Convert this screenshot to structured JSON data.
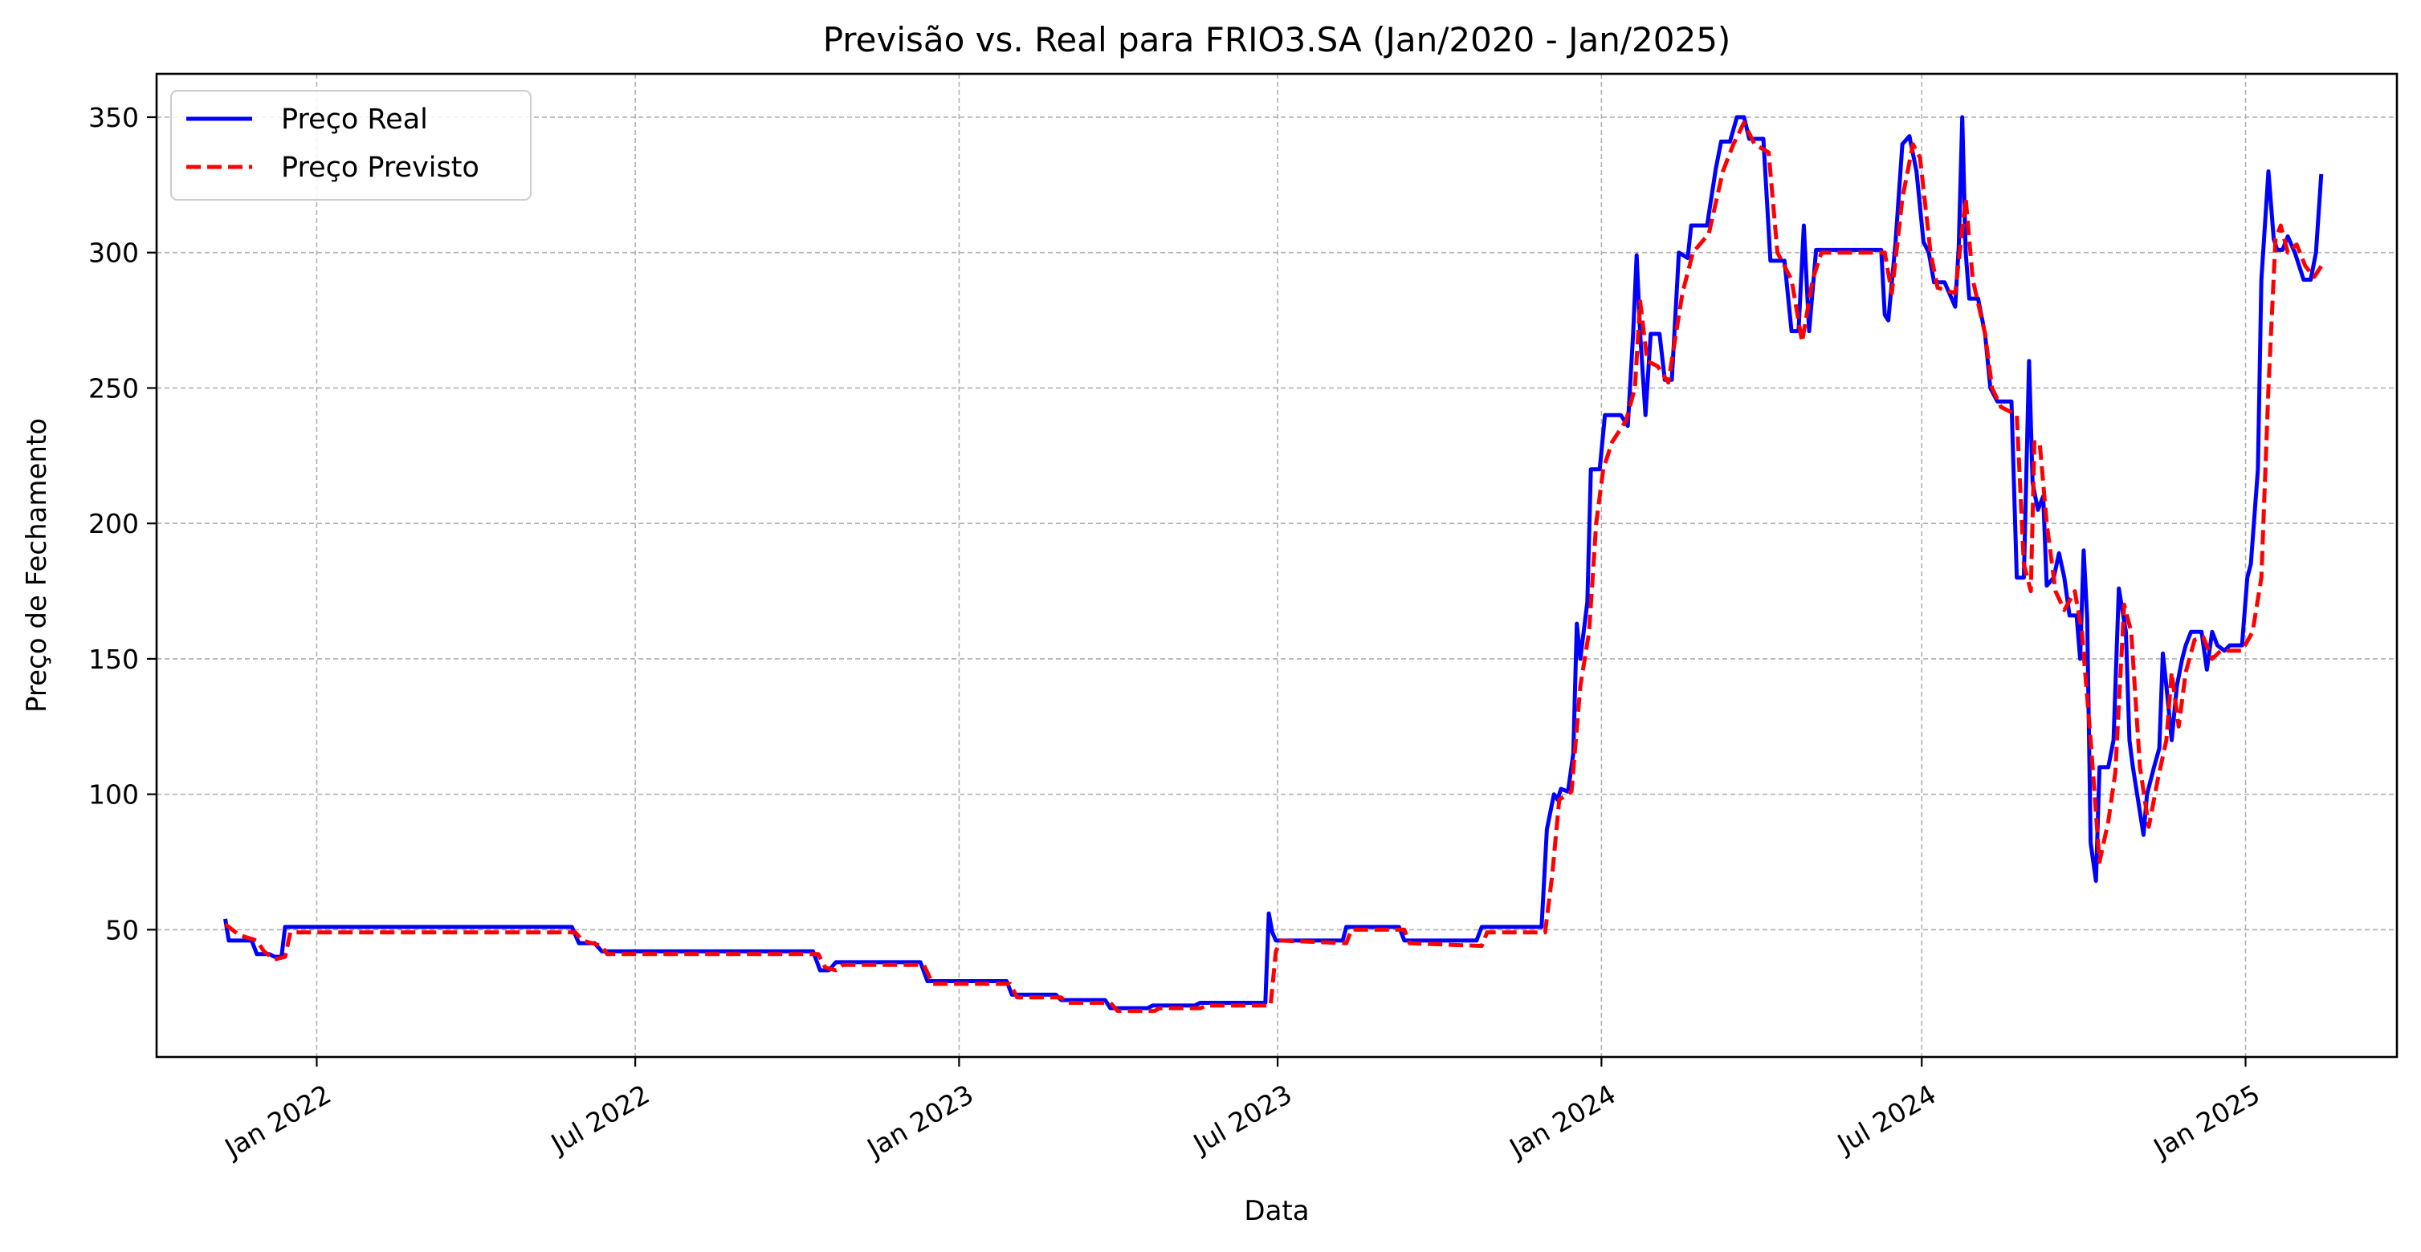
{
  "chart_data": {
    "type": "line",
    "title": "Previsão vs. Real para FRIO3.SA (Jan/2020 - Jan/2025)",
    "xlabel": "Data",
    "ylabel": "Preço de Fechamento",
    "xlim": [
      "2021-10-02",
      "2025-03-28"
    ],
    "ylim": [
      3,
      366
    ],
    "grid": true,
    "legend_position": "top-left",
    "x_ticks": [
      {
        "date": "2022-01-01",
        "label": "Jan 2022"
      },
      {
        "date": "2022-07-01",
        "label": "Jul 2022"
      },
      {
        "date": "2023-01-01",
        "label": "Jan 2023"
      },
      {
        "date": "2023-07-01",
        "label": "Jul 2023"
      },
      {
        "date": "2024-01-01",
        "label": "Jan 2024"
      },
      {
        "date": "2024-07-01",
        "label": "Jul 2024"
      },
      {
        "date": "2025-01-01",
        "label": "Jan 2025"
      }
    ],
    "y_ticks": [
      50,
      100,
      150,
      200,
      250,
      300,
      350
    ],
    "series": [
      {
        "name": "Preço Real",
        "color": "#0000ff",
        "style": "solid",
        "points": [
          [
            "2021-11-10",
            54
          ],
          [
            "2021-11-12",
            46
          ],
          [
            "2021-11-25",
            46
          ],
          [
            "2021-11-28",
            41
          ],
          [
            "2021-12-05",
            41
          ],
          [
            "2021-12-08",
            40
          ],
          [
            "2021-12-12",
            40
          ],
          [
            "2021-12-14",
            51
          ],
          [
            "2022-05-26",
            51
          ],
          [
            "2022-05-30",
            45
          ],
          [
            "2022-06-08",
            45
          ],
          [
            "2022-06-12",
            42
          ],
          [
            "2022-10-10",
            42
          ],
          [
            "2022-10-14",
            35
          ],
          [
            "2022-10-19",
            35
          ],
          [
            "2022-10-23",
            38
          ],
          [
            "2022-12-10",
            38
          ],
          [
            "2022-12-14",
            31
          ],
          [
            "2023-01-28",
            31
          ],
          [
            "2023-01-31",
            26
          ],
          [
            "2023-02-25",
            26
          ],
          [
            "2023-02-28",
            24
          ],
          [
            "2023-03-25",
            24
          ],
          [
            "2023-03-28",
            21
          ],
          [
            "2023-04-18",
            21
          ],
          [
            "2023-04-21",
            22
          ],
          [
            "2023-05-15",
            22
          ],
          [
            "2023-05-18",
            23
          ],
          [
            "2023-06-24",
            23
          ],
          [
            "2023-06-26",
            56
          ],
          [
            "2023-06-28",
            49
          ],
          [
            "2023-06-30",
            46
          ],
          [
            "2023-08-07",
            46
          ],
          [
            "2023-08-09",
            51
          ],
          [
            "2023-09-08",
            51
          ],
          [
            "2023-09-11",
            46
          ],
          [
            "2023-10-22",
            46
          ],
          [
            "2023-10-25",
            51
          ],
          [
            "2023-11-28",
            51
          ],
          [
            "2023-12-01",
            87
          ],
          [
            "2023-12-05",
            100
          ],
          [
            "2023-12-07",
            98
          ],
          [
            "2023-12-09",
            102
          ],
          [
            "2023-12-13",
            101
          ],
          [
            "2023-12-16",
            115
          ],
          [
            "2023-12-18",
            163
          ],
          [
            "2023-12-20",
            150
          ],
          [
            "2023-12-24",
            171
          ],
          [
            "2023-12-26",
            220
          ],
          [
            "2023-12-31",
            220
          ],
          [
            "2024-01-03",
            240
          ],
          [
            "2024-01-12",
            240
          ],
          [
            "2024-01-16",
            236
          ],
          [
            "2024-01-19",
            270
          ],
          [
            "2024-01-21",
            299
          ],
          [
            "2024-01-23",
            270
          ],
          [
            "2024-01-26",
            240
          ],
          [
            "2024-01-29",
            270
          ],
          [
            "2024-02-03",
            270
          ],
          [
            "2024-02-06",
            253
          ],
          [
            "2024-02-10",
            253
          ],
          [
            "2024-02-14",
            300
          ],
          [
            "2024-02-19",
            298
          ],
          [
            "2024-02-21",
            310
          ],
          [
            "2024-03-01",
            310
          ],
          [
            "2024-03-06",
            331
          ],
          [
            "2024-03-09",
            341
          ],
          [
            "2024-03-14",
            341
          ],
          [
            "2024-03-18",
            350
          ],
          [
            "2024-03-22",
            350
          ],
          [
            "2024-03-25",
            342
          ],
          [
            "2024-04-02",
            342
          ],
          [
            "2024-04-06",
            297
          ],
          [
            "2024-04-14",
            297
          ],
          [
            "2024-04-18",
            271
          ],
          [
            "2024-04-22",
            271
          ],
          [
            "2024-04-25",
            310
          ],
          [
            "2024-04-28",
            271
          ],
          [
            "2024-05-02",
            301
          ],
          [
            "2024-06-08",
            301
          ],
          [
            "2024-06-10",
            277
          ],
          [
            "2024-06-12",
            275
          ],
          [
            "2024-06-16",
            303
          ],
          [
            "2024-06-20",
            340
          ],
          [
            "2024-06-24",
            343
          ],
          [
            "2024-06-28",
            330
          ],
          [
            "2024-07-02",
            304
          ],
          [
            "2024-07-05",
            300
          ],
          [
            "2024-07-08",
            289
          ],
          [
            "2024-07-14",
            289
          ],
          [
            "2024-07-20",
            280
          ],
          [
            "2024-07-22",
            302
          ],
          [
            "2024-07-24",
            350
          ],
          [
            "2024-07-26",
            300
          ],
          [
            "2024-07-28",
            283
          ],
          [
            "2024-08-02",
            283
          ],
          [
            "2024-08-06",
            270
          ],
          [
            "2024-08-09",
            250
          ],
          [
            "2024-08-13",
            245
          ],
          [
            "2024-08-21",
            245
          ],
          [
            "2024-08-24",
            180
          ],
          [
            "2024-08-28",
            180
          ],
          [
            "2024-08-31",
            260
          ],
          [
            "2024-09-02",
            215
          ],
          [
            "2024-09-05",
            205
          ],
          [
            "2024-09-08",
            210
          ],
          [
            "2024-09-10",
            177
          ],
          [
            "2024-09-14",
            180
          ],
          [
            "2024-09-17",
            189
          ],
          [
            "2024-09-20",
            180
          ],
          [
            "2024-09-23",
            166
          ],
          [
            "2024-09-27",
            166
          ],
          [
            "2024-09-29",
            150
          ],
          [
            "2024-10-01",
            190
          ],
          [
            "2024-10-03",
            165
          ],
          [
            "2024-10-05",
            82
          ],
          [
            "2024-10-08",
            68
          ],
          [
            "2024-10-10",
            110
          ],
          [
            "2024-10-15",
            110
          ],
          [
            "2024-10-18",
            120
          ],
          [
            "2024-10-21",
            176
          ],
          [
            "2024-10-25",
            160
          ],
          [
            "2024-10-27",
            120
          ],
          [
            "2024-10-29",
            110
          ],
          [
            "2024-11-04",
            85
          ],
          [
            "2024-11-06",
            100
          ],
          [
            "2024-11-10",
            110
          ],
          [
            "2024-11-13",
            117
          ],
          [
            "2024-11-15",
            152
          ],
          [
            "2024-11-17",
            140
          ],
          [
            "2024-11-20",
            120
          ],
          [
            "2024-11-23",
            140
          ],
          [
            "2024-11-26",
            150
          ],
          [
            "2024-11-28",
            155
          ],
          [
            "2024-12-01",
            160
          ],
          [
            "2024-12-07",
            160
          ],
          [
            "2024-12-10",
            146
          ],
          [
            "2024-12-13",
            160
          ],
          [
            "2024-12-16",
            155
          ],
          [
            "2024-12-20",
            153
          ],
          [
            "2024-12-23",
            155
          ],
          [
            "2024-12-30",
            155
          ],
          [
            "2025-01-02",
            180
          ],
          [
            "2025-01-04",
            185
          ],
          [
            "2025-01-08",
            220
          ],
          [
            "2025-01-10",
            290
          ],
          [
            "2025-01-14",
            330
          ],
          [
            "2025-01-17",
            305
          ],
          [
            "2025-01-19",
            301
          ],
          [
            "2025-01-22",
            301
          ],
          [
            "2025-01-25",
            306
          ],
          [
            "2025-01-29",
            300
          ],
          [
            "2025-02-03",
            290
          ],
          [
            "2025-02-07",
            290
          ],
          [
            "2025-02-10",
            300
          ],
          [
            "2025-02-13",
            329
          ]
        ]
      },
      {
        "name": "Preço Previsto",
        "color": "#ff0000",
        "style": "dashed",
        "points": [
          [
            "2021-11-10",
            52
          ],
          [
            "2021-11-18",
            48
          ],
          [
            "2021-11-28",
            46
          ],
          [
            "2021-12-02",
            42
          ],
          [
            "2021-12-08",
            39
          ],
          [
            "2021-12-14",
            40
          ],
          [
            "2021-12-17",
            49
          ],
          [
            "2022-05-28",
            49
          ],
          [
            "2022-06-01",
            46
          ],
          [
            "2022-06-12",
            44
          ],
          [
            "2022-06-15",
            41
          ],
          [
            "2022-10-13",
            41
          ],
          [
            "2022-10-17",
            36
          ],
          [
            "2022-10-23",
            35
          ],
          [
            "2022-10-27",
            37
          ],
          [
            "2022-12-12",
            37
          ],
          [
            "2022-12-17",
            30
          ],
          [
            "2023-01-30",
            30
          ],
          [
            "2023-02-03",
            25
          ],
          [
            "2023-02-28",
            25
          ],
          [
            "2023-03-03",
            23
          ],
          [
            "2023-03-28",
            23
          ],
          [
            "2023-04-01",
            20
          ],
          [
            "2023-04-22",
            20
          ],
          [
            "2023-04-25",
            21
          ],
          [
            "2023-05-18",
            21
          ],
          [
            "2023-05-22",
            22
          ],
          [
            "2023-06-27",
            22
          ],
          [
            "2023-06-30",
            42
          ],
          [
            "2023-07-03",
            46
          ],
          [
            "2023-08-09",
            45
          ],
          [
            "2023-08-12",
            50
          ],
          [
            "2023-09-11",
            50
          ],
          [
            "2023-09-14",
            45
          ],
          [
            "2023-10-25",
            44
          ],
          [
            "2023-10-28",
            49
          ],
          [
            "2023-11-30",
            49
          ],
          [
            "2023-12-04",
            70
          ],
          [
            "2023-12-08",
            98
          ],
          [
            "2023-12-15",
            101
          ],
          [
            "2023-12-20",
            140
          ],
          [
            "2023-12-25",
            160
          ],
          [
            "2023-12-29",
            200
          ],
          [
            "2024-01-02",
            220
          ],
          [
            "2024-01-07",
            230
          ],
          [
            "2024-01-15",
            238
          ],
          [
            "2024-01-20",
            250
          ],
          [
            "2024-01-23",
            282
          ],
          [
            "2024-01-27",
            260
          ],
          [
            "2024-02-02",
            258
          ],
          [
            "2024-02-08",
            252
          ],
          [
            "2024-02-16",
            285
          ],
          [
            "2024-02-22",
            300
          ],
          [
            "2024-03-02",
            307
          ],
          [
            "2024-03-10",
            330
          ],
          [
            "2024-03-16",
            340
          ],
          [
            "2024-03-22",
            348
          ],
          [
            "2024-03-28",
            340
          ],
          [
            "2024-04-05",
            337
          ],
          [
            "2024-04-10",
            300
          ],
          [
            "2024-04-18",
            290
          ],
          [
            "2024-04-24",
            267
          ],
          [
            "2024-04-30",
            290
          ],
          [
            "2024-05-05",
            300
          ],
          [
            "2024-06-10",
            300
          ],
          [
            "2024-06-14",
            285
          ],
          [
            "2024-06-20",
            320
          ],
          [
            "2024-06-26",
            340
          ],
          [
            "2024-06-30",
            335
          ],
          [
            "2024-07-06",
            300
          ],
          [
            "2024-07-10",
            287
          ],
          [
            "2024-07-20",
            285
          ],
          [
            "2024-07-26",
            320
          ],
          [
            "2024-07-30",
            290
          ],
          [
            "2024-08-06",
            270
          ],
          [
            "2024-08-10",
            250
          ],
          [
            "2024-08-15",
            243
          ],
          [
            "2024-08-24",
            240
          ],
          [
            "2024-08-28",
            185
          ],
          [
            "2024-09-01",
            175
          ],
          [
            "2024-09-03",
            230
          ],
          [
            "2024-09-06",
            230
          ],
          [
            "2024-09-10",
            200
          ],
          [
            "2024-09-15",
            175
          ],
          [
            "2024-09-20",
            168
          ],
          [
            "2024-09-26",
            175
          ],
          [
            "2024-09-30",
            160
          ],
          [
            "2024-10-05",
            120
          ],
          [
            "2024-10-10",
            75
          ],
          [
            "2024-10-15",
            90
          ],
          [
            "2024-10-19",
            108
          ],
          [
            "2024-10-24",
            170
          ],
          [
            "2024-10-28",
            160
          ],
          [
            "2024-11-02",
            110
          ],
          [
            "2024-11-07",
            88
          ],
          [
            "2024-11-12",
            105
          ],
          [
            "2024-11-17",
            120
          ],
          [
            "2024-11-20",
            145
          ],
          [
            "2024-11-24",
            125
          ],
          [
            "2024-11-28",
            145
          ],
          [
            "2024-12-03",
            157
          ],
          [
            "2024-12-08",
            158
          ],
          [
            "2024-12-13",
            150
          ],
          [
            "2024-12-18",
            153
          ],
          [
            "2024-12-30",
            153
          ],
          [
            "2025-01-05",
            160
          ],
          [
            "2025-01-10",
            180
          ],
          [
            "2025-01-14",
            250
          ],
          [
            "2025-01-18",
            305
          ],
          [
            "2025-01-21",
            310
          ],
          [
            "2025-01-25",
            300
          ],
          [
            "2025-01-30",
            303
          ],
          [
            "2025-02-04",
            295
          ],
          [
            "2025-02-09",
            291
          ],
          [
            "2025-02-13",
            295
          ]
        ]
      }
    ]
  }
}
